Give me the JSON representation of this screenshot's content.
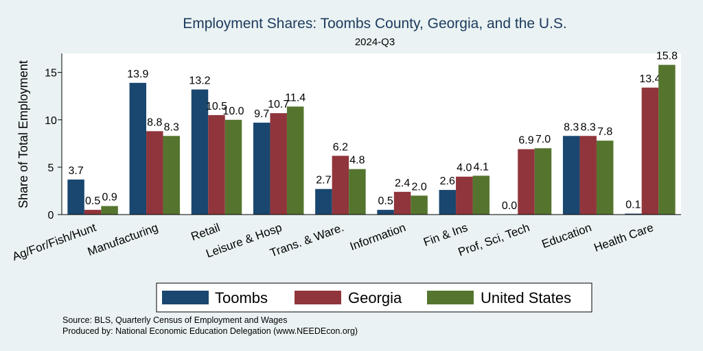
{
  "chart_data": {
    "type": "bar",
    "title": "Employment Shares: Toombs County, Georgia, and the U.S.",
    "subtitle": "2024-Q3",
    "ylabel": "Share of Total Employment",
    "xlabel": "",
    "ylim": [
      0,
      17
    ],
    "yticks": [
      0,
      5,
      10,
      15
    ],
    "grid": false,
    "legend_position": "bottom",
    "categories": [
      "Ag/For/Fish/Hunt",
      "Manufacturing",
      "Retail",
      "Leisure & Hosp",
      "Trans. & Ware.",
      "Information",
      "Fin & Ins",
      "Prof, Sci, Tech",
      "Education",
      "Health Care"
    ],
    "series": [
      {
        "name": "Toombs",
        "color": "#1a476f",
        "values": [
          3.7,
          13.9,
          13.2,
          9.7,
          2.7,
          0.5,
          2.6,
          0.0,
          8.3,
          0.1
        ]
      },
      {
        "name": "Georgia",
        "color": "#90353b",
        "values": [
          0.5,
          8.8,
          10.5,
          10.7,
          6.2,
          2.4,
          4.0,
          6.9,
          8.3,
          13.4
        ]
      },
      {
        "name": "United States",
        "color": "#55752f",
        "values": [
          0.9,
          8.3,
          10.0,
          11.4,
          4.8,
          2.0,
          4.1,
          7.0,
          7.8,
          15.8
        ]
      }
    ],
    "source_lines": [
      "Source: BLS, Quarterly Census of Employment and Wages",
      "Produced by: National Economic Education Delegation (www.NEEDEcon.org)"
    ]
  }
}
